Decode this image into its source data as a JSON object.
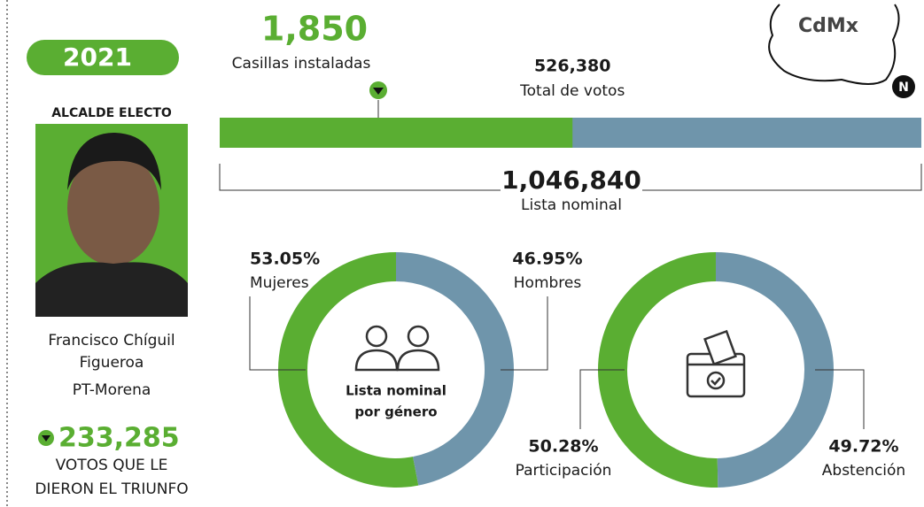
{
  "year": "2021",
  "candidate": {
    "heading": "ALCALDE ELECTO",
    "name_lines": [
      "Francisco Chíguil",
      "Figueroa"
    ],
    "party": "PT-Morena",
    "votes": "233,285",
    "votes_caption": [
      "VOTOS QUE LE",
      "DIERON EL TRIUNFO"
    ]
  },
  "map_label": "CdMx",
  "north": "N",
  "polling": {
    "value": "1,850",
    "label": "Casillas instaladas"
  },
  "turnout_bar": {
    "votes": {
      "value": 526380,
      "label": "526,380"
    },
    "votes_caption": "Total de votos",
    "nominal": {
      "value": 1046840,
      "label": "1,046,840"
    },
    "nominal_caption": "Lista nominal",
    "colors": [
      "#5aae32",
      "#6f95ab"
    ]
  },
  "chart_data": [
    {
      "type": "pie",
      "donut": true,
      "categories": [
        "Mujeres",
        "Hombres"
      ],
      "values": [
        53.05,
        46.95
      ],
      "value_labels": [
        "53.05%",
        "46.95%"
      ],
      "colors": [
        "#5aae32",
        "#6f95ab"
      ],
      "center_label": [
        "Lista nominal",
        "por género"
      ]
    },
    {
      "type": "pie",
      "donut": true,
      "categories": [
        "Participación",
        "Abstención"
      ],
      "values": [
        50.28,
        49.72
      ],
      "value_labels": [
        "50.28%",
        "49.72%"
      ],
      "colors": [
        "#5aae32",
        "#6f95ab"
      ]
    }
  ]
}
